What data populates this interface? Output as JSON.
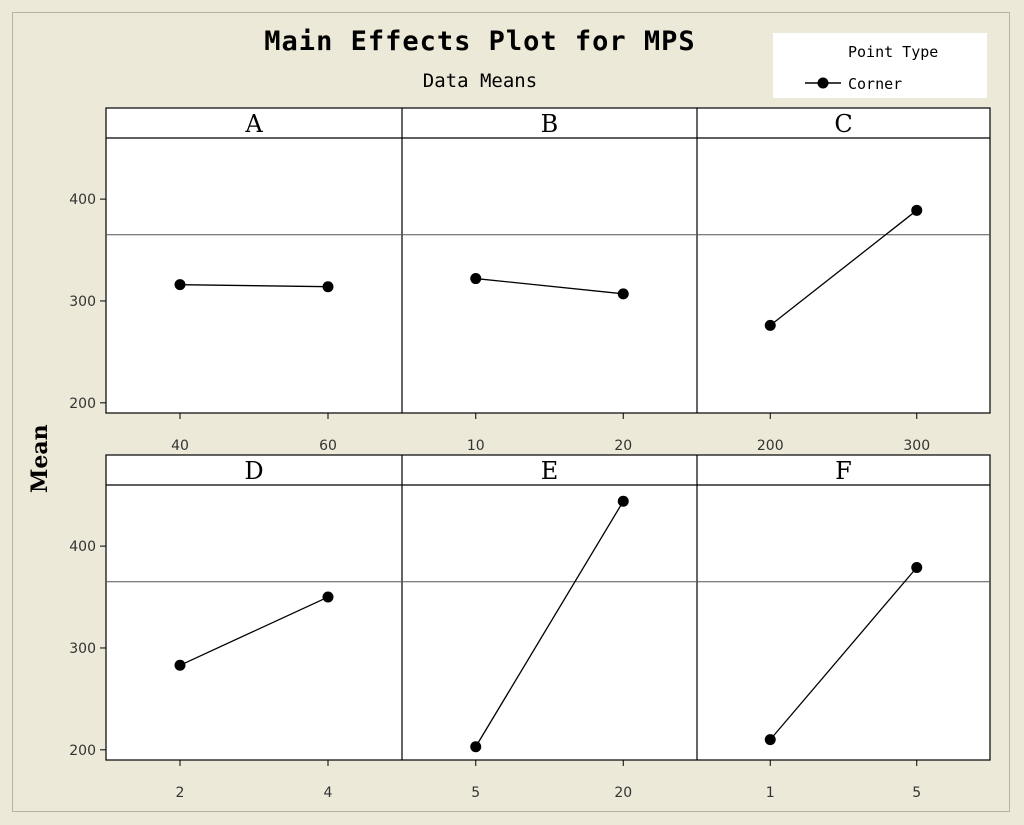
{
  "title": "Main Effects Plot for MPS",
  "subtitle": "Data Means",
  "legend": {
    "title": "Point Type",
    "label": "Corner"
  },
  "ylabel": "Mean",
  "colors": {
    "plot_bg": "#ffffff",
    "figure_bg": "#ece9d8",
    "line": "#000000"
  },
  "chart_data": {
    "type": "line",
    "title": "Main Effects Plot for MPS",
    "subtitle": "Data Means",
    "ylabel": "Mean",
    "ylim": [
      190,
      460
    ],
    "yticks": [
      200,
      300,
      400
    ],
    "reference_line": 365,
    "legend": {
      "title": "Point Type",
      "entries": [
        "Corner"
      ],
      "position": "top-right"
    },
    "grid": false,
    "panels": [
      {
        "factor": "A",
        "levels": [
          "40",
          "60"
        ],
        "means": [
          316,
          314
        ]
      },
      {
        "factor": "B",
        "levels": [
          "10",
          "20"
        ],
        "means": [
          322,
          307
        ]
      },
      {
        "factor": "C",
        "levels": [
          "200",
          "300"
        ],
        "means": [
          276,
          389
        ]
      },
      {
        "factor": "D",
        "levels": [
          "2",
          "4"
        ],
        "means": [
          283,
          350
        ]
      },
      {
        "factor": "E",
        "levels": [
          "5",
          "20"
        ],
        "means": [
          203,
          444
        ]
      },
      {
        "factor": "F",
        "levels": [
          "1",
          "5"
        ],
        "means": [
          210,
          379
        ]
      }
    ]
  }
}
